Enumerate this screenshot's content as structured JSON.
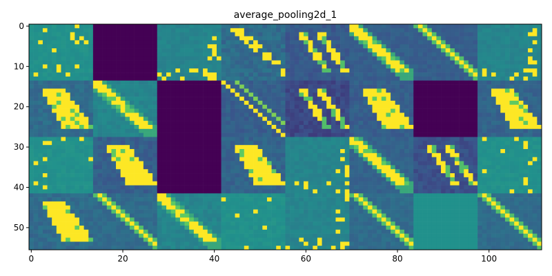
{
  "chart_data": {
    "type": "heatmap",
    "title": "average_pooling2d_1",
    "xlabel": "",
    "ylabel": "",
    "colormap": "viridis",
    "grid": false,
    "xlim": [
      -0.5,
      111.5
    ],
    "ylim": [
      55.5,
      -0.5
    ],
    "x_ticks": [
      0,
      20,
      40,
      60,
      80,
      100
    ],
    "y_ticks": [
      0,
      10,
      20,
      30,
      40,
      50
    ],
    "mosaic": {
      "rows": 4,
      "cols": 8,
      "tile_size": 14,
      "total_width": 112,
      "total_height": 56
    },
    "colors": {
      "low": "#440154",
      "low_mid": "#3b528b",
      "mid": "#21918c",
      "high_mid": "#5ec962",
      "high": "#fde725"
    },
    "tiles": [
      {
        "row": 0,
        "col": 0,
        "pattern": "sparse",
        "base": 0.5
      },
      {
        "row": 0,
        "col": 1,
        "pattern": "empty",
        "base": 0.0
      },
      {
        "row": 0,
        "col": 2,
        "pattern": "sparse-edge",
        "base": 0.45
      },
      {
        "row": 0,
        "col": 3,
        "pattern": "diag-spotty",
        "base": 0.35
      },
      {
        "row": 0,
        "col": 4,
        "pattern": "blob-outline",
        "base": 0.28
      },
      {
        "row": 0,
        "col": 5,
        "pattern": "diag-thick",
        "base": 0.3
      },
      {
        "row": 0,
        "col": 6,
        "pattern": "diag-thin",
        "base": 0.3
      },
      {
        "row": 0,
        "col": 7,
        "pattern": "sparse-edge",
        "base": 0.45
      },
      {
        "row": 1,
        "col": 0,
        "pattern": "blob-fill",
        "base": 0.35
      },
      {
        "row": 1,
        "col": 1,
        "pattern": "diag-thick",
        "base": 0.45
      },
      {
        "row": 1,
        "col": 2,
        "pattern": "empty",
        "base": 0.0
      },
      {
        "row": 1,
        "col": 3,
        "pattern": "diag-outline",
        "base": 0.3
      },
      {
        "row": 1,
        "col": 4,
        "pattern": "blob-outline",
        "base": 0.22
      },
      {
        "row": 1,
        "col": 5,
        "pattern": "blob-fill",
        "base": 0.3
      },
      {
        "row": 1,
        "col": 6,
        "pattern": "empty",
        "base": 0.0
      },
      {
        "row": 1,
        "col": 7,
        "pattern": "blob-fill",
        "base": 0.32
      },
      {
        "row": 2,
        "col": 0,
        "pattern": "sparse",
        "base": 0.5
      },
      {
        "row": 2,
        "col": 1,
        "pattern": "blob-fill",
        "base": 0.3
      },
      {
        "row": 2,
        "col": 2,
        "pattern": "empty",
        "base": 0.0
      },
      {
        "row": 2,
        "col": 3,
        "pattern": "blob-fill",
        "base": 0.32
      },
      {
        "row": 2,
        "col": 4,
        "pattern": "sparse-edge",
        "base": 0.45
      },
      {
        "row": 2,
        "col": 5,
        "pattern": "diag-thick",
        "base": 0.32
      },
      {
        "row": 2,
        "col": 6,
        "pattern": "blob-outline",
        "base": 0.25
      },
      {
        "row": 2,
        "col": 7,
        "pattern": "sparse",
        "base": 0.5
      },
      {
        "row": 3,
        "col": 0,
        "pattern": "blob-fill",
        "base": 0.35
      },
      {
        "row": 3,
        "col": 1,
        "pattern": "diag-thin",
        "base": 0.35
      },
      {
        "row": 3,
        "col": 2,
        "pattern": "diag-thick",
        "base": 0.45
      },
      {
        "row": 3,
        "col": 3,
        "pattern": "sparse",
        "base": 0.5
      },
      {
        "row": 3,
        "col": 4,
        "pattern": "sparse-edge",
        "base": 0.45
      },
      {
        "row": 3,
        "col": 5,
        "pattern": "diag-thin",
        "base": 0.35
      },
      {
        "row": 3,
        "col": 6,
        "pattern": "flat",
        "base": 0.5
      },
      {
        "row": 3,
        "col": 7,
        "pattern": "diag-thin",
        "base": 0.35
      }
    ]
  }
}
